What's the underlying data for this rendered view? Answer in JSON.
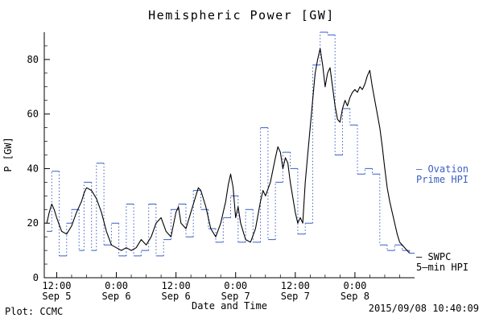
{
  "footer": {
    "source": "Plot: CCMC",
    "timestamp": "2015/09/08 10:40:09"
  },
  "legend": {
    "ovation": {
      "line1": "– Ovation",
      "line2": "Prime HPI",
      "color": "#3a5fc5"
    },
    "swpc": {
      "line1": "— SWPC",
      "line2": "5–min HPI",
      "color": "#000000"
    }
  },
  "chart_data": {
    "type": "line",
    "title": "Hemispheric Power [GW]",
    "xlabel": "Date and Time",
    "ylabel": "P [GW]",
    "x_unit": "hours since 2015-09-05 00:00",
    "xlim": [
      9.5,
      84
    ],
    "ylim": [
      0,
      90
    ],
    "grid": false,
    "legend_position": "right",
    "y_ticks": [
      0,
      20,
      40,
      60,
      80
    ],
    "x_ticks": [
      {
        "t": 12,
        "time": "12:00",
        "date": "Sep 5"
      },
      {
        "t": 24,
        "time": "0:00",
        "date": "Sep 6"
      },
      {
        "t": 36,
        "time": "12:00",
        "date": "Sep 6"
      },
      {
        "t": 48,
        "time": "0:00",
        "date": "Sep 7"
      },
      {
        "t": 60,
        "time": "12:00",
        "date": "Sep 7"
      },
      {
        "t": 72,
        "time": "0:00",
        "date": "Sep 8"
      }
    ],
    "series": [
      {
        "name": "Ovation Prime HPI",
        "color": "#3a5fc5",
        "style": "step-dotted",
        "x": [
          10,
          11,
          12.5,
          14,
          15,
          16.5,
          17.5,
          19,
          20,
          21.5,
          23,
          24.5,
          26,
          27.5,
          29,
          30.5,
          32,
          33.5,
          35,
          36.5,
          38,
          39.5,
          41,
          42.5,
          44,
          45.5,
          47,
          48.5,
          50,
          51.5,
          53,
          54.5,
          56,
          57.5,
          59,
          60.5,
          62,
          63.5,
          65,
          66.5,
          68,
          69.5,
          71,
          72.5,
          74,
          75.5,
          77,
          78.5,
          80,
          81.5,
          83
        ],
        "y": [
          17,
          39,
          8,
          20,
          25,
          10,
          35,
          10,
          42,
          12,
          20,
          8,
          27,
          8,
          10,
          27,
          8,
          14,
          25,
          27,
          15,
          32,
          25,
          18,
          13,
          22,
          30,
          13,
          25,
          13,
          55,
          14,
          35,
          46,
          40,
          16,
          20,
          78,
          90,
          89,
          45,
          62,
          56,
          38,
          40,
          38,
          12,
          10,
          12,
          10,
          9
        ]
      },
      {
        "name": "SWPC 5-min HPI",
        "color": "#000000",
        "style": "line",
        "x": [
          10,
          10.5,
          11,
          11.5,
          12,
          13,
          14,
          15,
          16,
          17,
          17.5,
          18,
          19,
          20,
          21,
          22,
          23,
          24,
          25,
          26,
          27,
          28,
          29,
          30,
          31,
          32,
          33,
          34,
          35,
          36,
          36.5,
          37,
          38,
          39,
          40,
          40.5,
          41,
          42,
          43,
          44,
          45,
          46,
          46.5,
          47,
          47.5,
          48,
          48.5,
          49,
          50,
          51,
          52,
          53,
          53.5,
          54,
          55,
          56,
          56.5,
          57,
          57.5,
          58,
          58.5,
          59,
          60,
          60.5,
          61,
          61.5,
          62,
          62.5,
          63,
          63.5,
          64,
          64.5,
          65,
          65.5,
          66,
          66.5,
          67,
          67.5,
          68,
          68.5,
          69,
          69.5,
          70,
          70.5,
          71,
          71.5,
          72,
          72.5,
          73,
          73.5,
          74,
          74.5,
          75,
          75.5,
          76,
          76.5,
          77,
          77.5,
          78,
          78.5,
          79,
          79.5,
          80,
          80.5,
          81,
          81.5,
          82,
          82.5,
          83
        ],
        "y": [
          20,
          24,
          27,
          25,
          22,
          17,
          16,
          19,
          24,
          28,
          31,
          33,
          32,
          29,
          24,
          17,
          12,
          11,
          10,
          11,
          10,
          11,
          14,
          12,
          15,
          20,
          22,
          17,
          15,
          24,
          26,
          20,
          18,
          24,
          30,
          33,
          32,
          26,
          18,
          15,
          20,
          28,
          34,
          38,
          33,
          22,
          26,
          20,
          14,
          13,
          18,
          28,
          32,
          30,
          35,
          44,
          48,
          46,
          40,
          44,
          42,
          35,
          24,
          20,
          22,
          20,
          35,
          45,
          55,
          65,
          75,
          80,
          84,
          78,
          70,
          75,
          77,
          70,
          63,
          58,
          57,
          62,
          65,
          63,
          66,
          68,
          69,
          68,
          70,
          69,
          71,
          74,
          76,
          70,
          65,
          60,
          55,
          48,
          40,
          33,
          28,
          24,
          20,
          16,
          13,
          12,
          11,
          10,
          9
        ]
      }
    ]
  }
}
